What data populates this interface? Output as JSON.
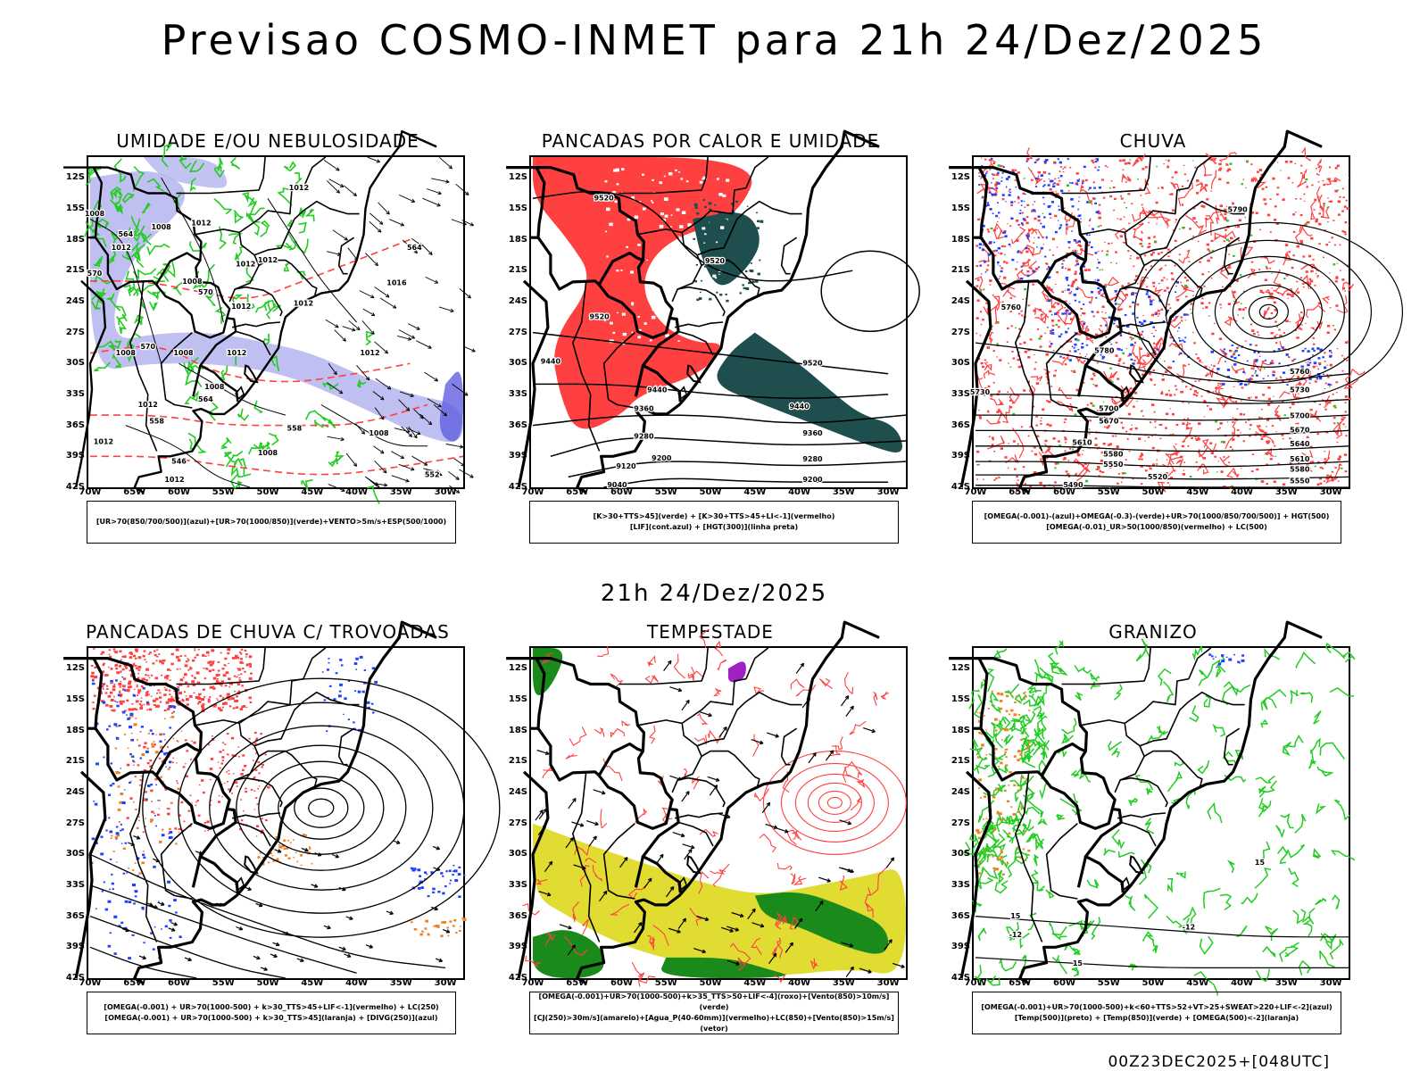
{
  "title": "Previsao COSMO-INMET  para 21h 24/Dez/2025",
  "mid_title": "21h 24/Dez/2025",
  "footer": "00Z23DEC2025+[048UTC]",
  "axes": {
    "lat_labels": [
      "12S",
      "15S",
      "18S",
      "21S",
      "24S",
      "27S",
      "30S",
      "33S",
      "36S",
      "39S",
      "42S"
    ],
    "lon_labels": [
      "70W",
      "65W",
      "60W",
      "55W",
      "50W",
      "45W",
      "40W",
      "35W",
      "30W"
    ]
  },
  "colors": {
    "blue": "#2040ff",
    "green": "#22cc22",
    "red": "#ff4040",
    "lavender": "#b4b4f0",
    "dark_teal": "#1e4e4e",
    "yellow": "#e0dc32",
    "dark_green": "#1a8a1a",
    "orange": "#f08020",
    "purple": "#a020c0"
  },
  "panels": [
    {
      "id": "umidade",
      "title": "UMIDADE E/OU NEBULOSIDADE",
      "legend": [
        "[UR>70(850/700/500)](azul)+[UR>70(1000/850)](verde)+VENTO>5m/s+ESP(500/1000)"
      ],
      "contour_labels": [
        {
          "text": "1012",
          "lon": -46.5,
          "lat": -13.2
        },
        {
          "text": "1008",
          "lon": -69.5,
          "lat": -15.7
        },
        {
          "text": "1008",
          "lon": -62.0,
          "lat": -17.0
        },
        {
          "text": "1012",
          "lon": -57.5,
          "lat": -16.6
        },
        {
          "text": "1012",
          "lon": -66.5,
          "lat": -19.0
        },
        {
          "text": "1012",
          "lon": -52.5,
          "lat": -20.6
        },
        {
          "text": "1012",
          "lon": -50.0,
          "lat": -20.2
        },
        {
          "text": "1008",
          "lon": -58.5,
          "lat": -22.3
        },
        {
          "text": "1016",
          "lon": -35.5,
          "lat": -22.4
        },
        {
          "text": "1012",
          "lon": -53.0,
          "lat": -24.7
        },
        {
          "text": "1012",
          "lon": -46.0,
          "lat": -24.4
        },
        {
          "text": "1012",
          "lon": -53.5,
          "lat": -29.2
        },
        {
          "text": "1008",
          "lon": -66.0,
          "lat": -29.2
        },
        {
          "text": "1008",
          "lon": -59.5,
          "lat": -29.2
        },
        {
          "text": "1012",
          "lon": -38.5,
          "lat": -29.2
        },
        {
          "text": "1008",
          "lon": -56.0,
          "lat": -32.5
        },
        {
          "text": "1012",
          "lon": -63.5,
          "lat": -34.2
        },
        {
          "text": "1008",
          "lon": -37.5,
          "lat": -37.0
        },
        {
          "text": "1012",
          "lon": -68.5,
          "lat": -37.8
        },
        {
          "text": "1008",
          "lon": -50.0,
          "lat": -38.9
        },
        {
          "text": "1012",
          "lon": -60.5,
          "lat": -41.5
        },
        {
          "text": "564",
          "lon": -33.5,
          "lat": -19.0
        },
        {
          "text": "570",
          "lon": -57.0,
          "lat": -23.3
        },
        {
          "text": "570",
          "lon": -63.5,
          "lat": -28.6
        },
        {
          "text": "564",
          "lon": -57.0,
          "lat": -33.7
        },
        {
          "text": "558",
          "lon": -62.5,
          "lat": -35.8
        },
        {
          "text": "558",
          "lon": -47.0,
          "lat": -36.5
        },
        {
          "text": "552",
          "lon": -31.5,
          "lat": -41.0
        },
        {
          "text": "546",
          "lon": -60.0,
          "lat": -39.7
        },
        {
          "text": "564",
          "lon": -66.0,
          "lat": -17.7
        },
        {
          "text": "570",
          "lon": -69.5,
          "lat": -21.5
        }
      ]
    },
    {
      "id": "pancadas-calor",
      "title": "PANCADAS POR CALOR E UMIDADE",
      "legend": [
        "[K>30+TTS>45](verde)  +  [K>30+TTS>45+LI<-1](vermelho)",
        "[LIF](cont.azul)  +  [HGT(300)](linha preta)"
      ],
      "contour_labels": [
        {
          "text": "9520",
          "lon": -62.0,
          "lat": -14.2
        },
        {
          "text": "9520",
          "lon": -49.5,
          "lat": -20.3
        },
        {
          "text": "9520",
          "lon": -62.5,
          "lat": -25.7
        },
        {
          "text": "9440",
          "lon": -68.0,
          "lat": -30.0
        },
        {
          "text": "9520",
          "lon": -38.5,
          "lat": -30.2
        },
        {
          "text": "9440",
          "lon": -56.0,
          "lat": -32.8
        },
        {
          "text": "9360",
          "lon": -57.5,
          "lat": -34.6
        },
        {
          "text": "9440",
          "lon": -40.0,
          "lat": -34.4
        },
        {
          "text": "9280",
          "lon": -57.5,
          "lat": -37.3
        },
        {
          "text": "9360",
          "lon": -38.5,
          "lat": -37.0
        },
        {
          "text": "9200",
          "lon": -55.5,
          "lat": -39.4
        },
        {
          "text": "9280",
          "lon": -38.5,
          "lat": -39.5
        },
        {
          "text": "9120",
          "lon": -59.5,
          "lat": -40.2
        },
        {
          "text": "9200",
          "lon": -38.5,
          "lat": -41.5
        },
        {
          "text": "9040",
          "lon": -60.5,
          "lat": -42.0
        }
      ]
    },
    {
      "id": "chuva",
      "title": "CHUVA",
      "legend": [
        "[OMEGA(-0.001)-(azul)+OMEGA(-0.3)-(verde)+UR>70(1000/850/700/500)] + HGT(500)",
        "[OMEGA(-0.01)_UR>50(1000/850)(vermelho) + LC(500)"
      ],
      "contour_labels": [
        {
          "text": "5790",
          "lon": -40.5,
          "lat": -15.3
        },
        {
          "text": "5760",
          "lon": -66.0,
          "lat": -24.8
        },
        {
          "text": "5780",
          "lon": -55.5,
          "lat": -29.0
        },
        {
          "text": "5760",
          "lon": -33.5,
          "lat": -31.0
        },
        {
          "text": "5730",
          "lon": -69.5,
          "lat": -33.0
        },
        {
          "text": "5730",
          "lon": -33.5,
          "lat": -32.8
        },
        {
          "text": "5700",
          "lon": -55.0,
          "lat": -34.6
        },
        {
          "text": "5700",
          "lon": -33.5,
          "lat": -35.3
        },
        {
          "text": "5670",
          "lon": -55.0,
          "lat": -35.8
        },
        {
          "text": "5670",
          "lon": -33.5,
          "lat": -36.7
        },
        {
          "text": "5640",
          "lon": -33.5,
          "lat": -38.0
        },
        {
          "text": "5610",
          "lon": -58.0,
          "lat": -37.9
        },
        {
          "text": "5610",
          "lon": -33.5,
          "lat": -39.5
        },
        {
          "text": "5580",
          "lon": -54.5,
          "lat": -39.0
        },
        {
          "text": "5580",
          "lon": -33.5,
          "lat": -40.5
        },
        {
          "text": "5550",
          "lon": -54.5,
          "lat": -40.0
        },
        {
          "text": "5520",
          "lon": -49.5,
          "lat": -41.2
        },
        {
          "text": "5550",
          "lon": -33.5,
          "lat": -41.6
        },
        {
          "text": "5490",
          "lon": -59.0,
          "lat": -42.0
        }
      ]
    },
    {
      "id": "pancadas-trovoadas",
      "title": "PANCADAS DE CHUVA C/ TROVOADAS",
      "legend": [
        "[OMEGA(-0.001) + UR>70(1000-500) + k>30_TTS>45+LIF<-1](vermelho) + LC(250)",
        "[OMEGA(-0.001) + UR>70(1000-500) + k>30_TTS>45](laranja) + [DIVG(250)](azul)"
      ]
    },
    {
      "id": "tempestade",
      "title": "TEMPESTADE",
      "legend": [
        "[OMEGA(-0.001)+UR>70(1000-500)+k>35_TTS>50+LIF<-4](roxo)+[Vento(850)>10m/s](verde)",
        "[CJ(250)>30m/s](amarelo)+[Agua_P(40-60mm)](vermelho)+LC(850)+[Vento(850)>15m/s](vetor)"
      ]
    },
    {
      "id": "granizo",
      "title": "GRANIZO",
      "legend": [
        "[OMEGA(-0.001)+UR>70(1000-500)+k<60+TTS>52+VT>25+SWEAT>220+LIF<-2](azul)",
        "[Temp(500)](preto) + [Temp(850)](verde) + [OMEGA(500)<-2](laranja)"
      ],
      "contour_labels": [
        {
          "text": "-12",
          "lon": -46.0,
          "lat": -37.3
        },
        {
          "text": "-12",
          "lon": -65.5,
          "lat": -38.0
        },
        {
          "text": "15",
          "lon": -65.5,
          "lat": -36.2
        },
        {
          "text": "15",
          "lon": -58.5,
          "lat": -40.8
        },
        {
          "text": "15",
          "lon": -38.0,
          "lat": -31.0
        }
      ]
    }
  ]
}
